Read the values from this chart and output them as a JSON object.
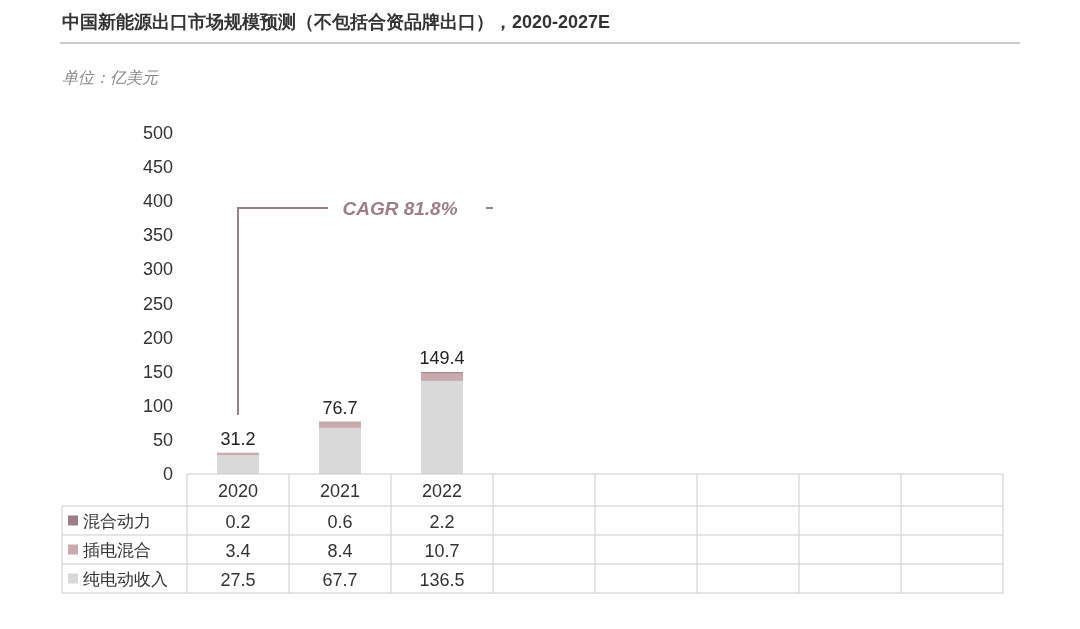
{
  "chart_data": {
    "type": "bar",
    "title": "中国新能源出口市场规模预测（不包括合资品牌出口），2020-2027E",
    "subtitle": "单位：亿美元",
    "annotations": [
      "CAGR 81.8%"
    ],
    "categories": [
      "2020",
      "2021",
      "2022",
      null,
      null,
      null,
      null,
      null
    ],
    "series": [
      {
        "name": "纯电动收入",
        "color": "#d9d9d9",
        "values": [
          27.5,
          67.7,
          136.5,
          null,
          null,
          null,
          null,
          null
        ]
      },
      {
        "name": "插电混合",
        "color": "#c9aaae",
        "values": [
          3.4,
          8.4,
          10.7,
          null,
          null,
          null,
          null,
          null
        ]
      },
      {
        "name": "混合动力",
        "color": "#9c7f86",
        "values": [
          0.2,
          0.6,
          2.2,
          null,
          null,
          null,
          null,
          null
        ]
      }
    ],
    "stacked": true,
    "ylim": [
      0,
      500
    ],
    "yticks": [
      0,
      50,
      100,
      150,
      200,
      250,
      300,
      350,
      400,
      450,
      500
    ],
    "data_labels": true,
    "totals": [
      "31.2",
      "76.7",
      "149.4",
      null,
      null,
      null,
      null,
      null
    ],
    "legend": "bottom"
  }
}
